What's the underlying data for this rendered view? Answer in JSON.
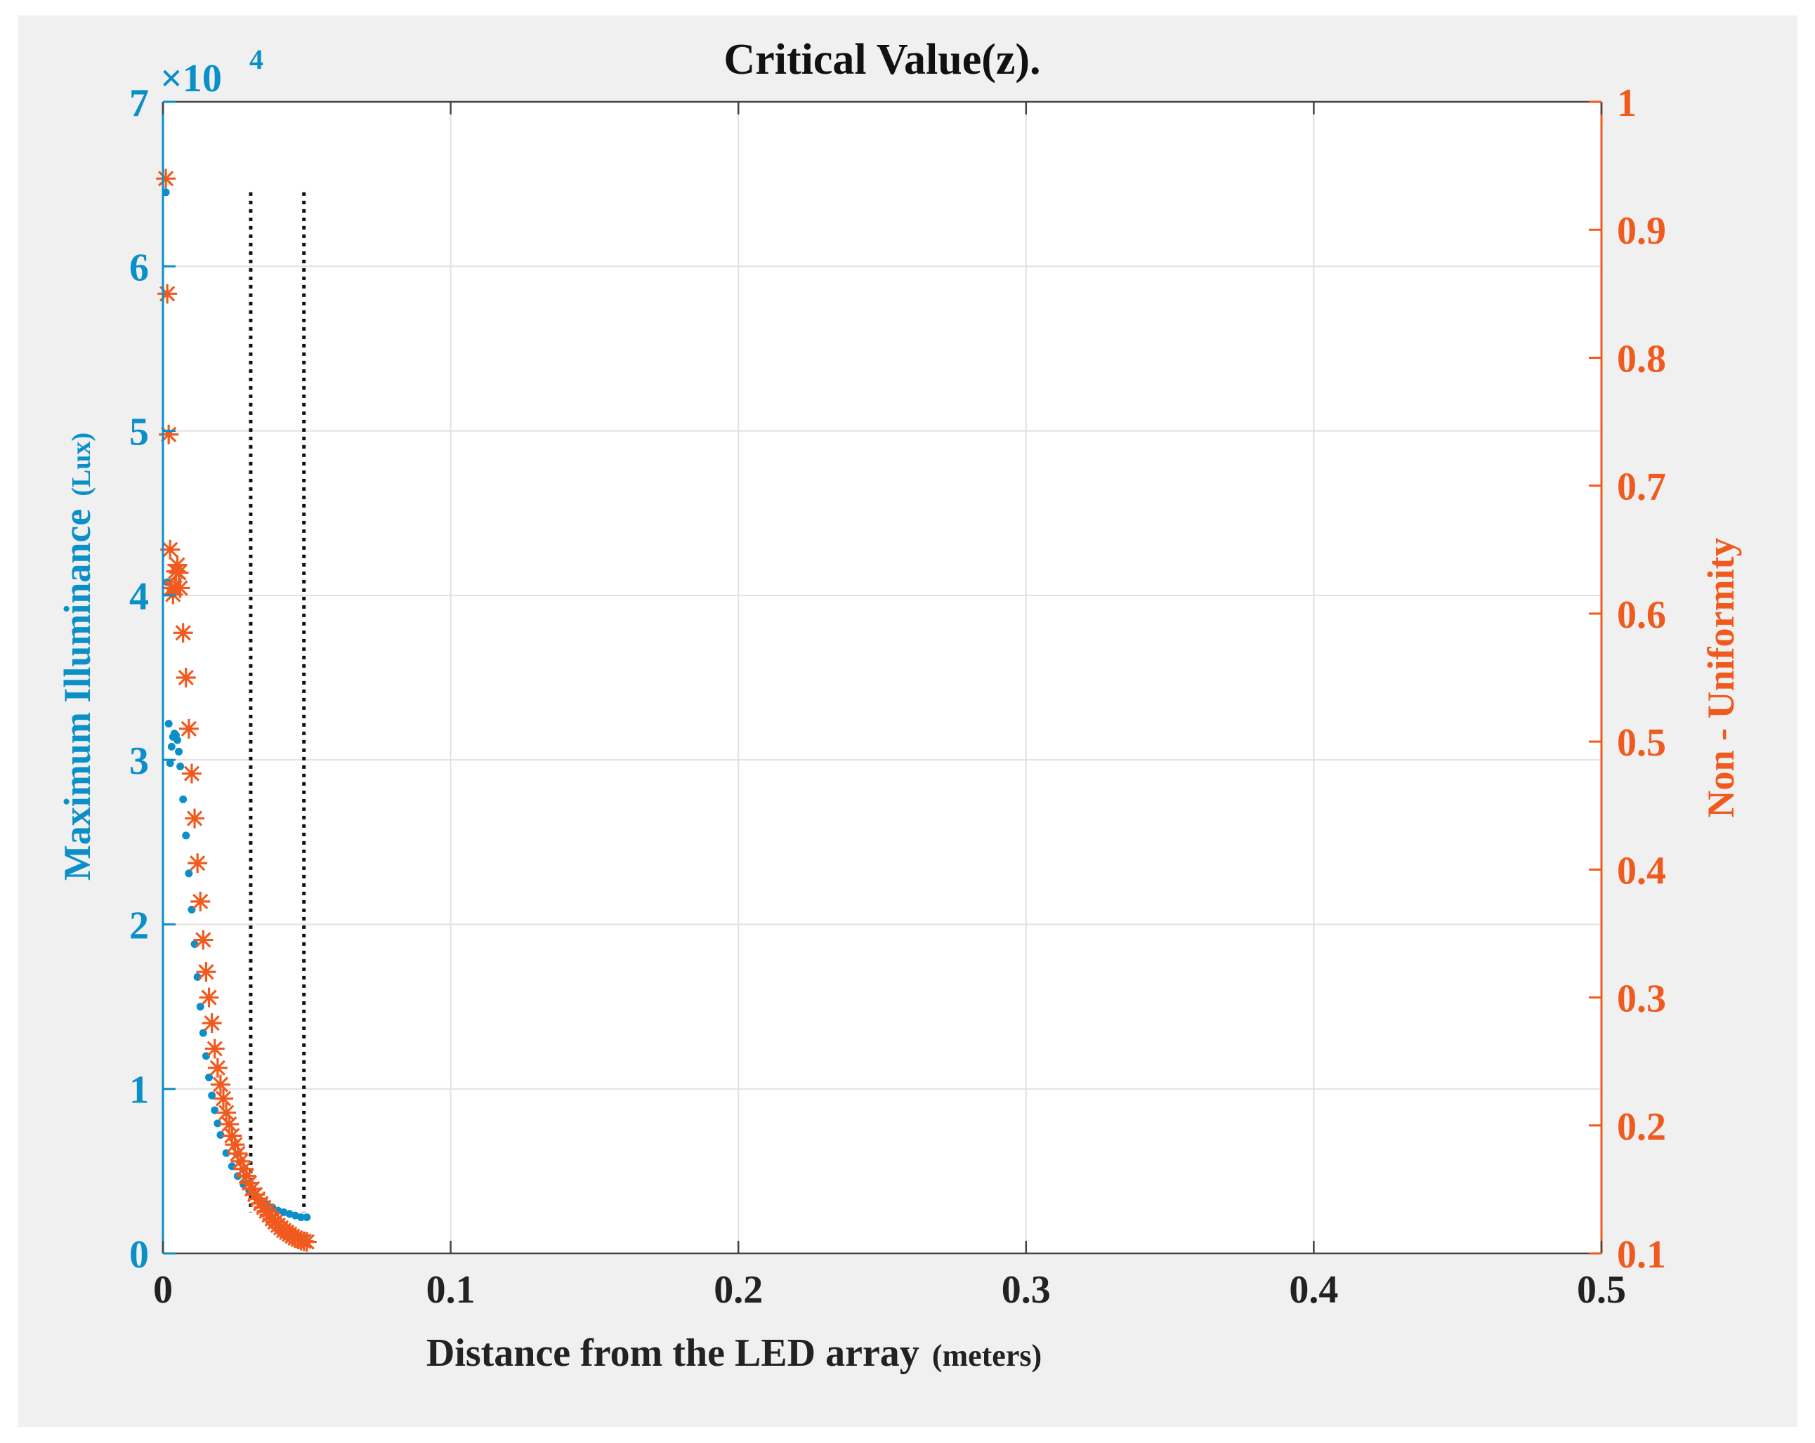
{
  "chart_data": {
    "type": "scatter",
    "title": "Critical Value(z).",
    "xlabel": "Distance from the LED array",
    "xlabel_unit": "(meters)",
    "ylabel_left": "Maximum Illuminance",
    "ylabel_left_unit": "(Lux)",
    "ylabel_right": "Non - Uniformity",
    "left_exponent": "×10",
    "left_exponent_power": "4",
    "xlim": [
      0,
      0.5
    ],
    "ylim_left": [
      0,
      7
    ],
    "ylim_right": [
      0.1,
      1
    ],
    "x_ticks": [
      "0",
      "0.1",
      "0.2",
      "0.3",
      "0.4",
      "0.5"
    ],
    "y_left_ticks": [
      "0",
      "1",
      "2",
      "3",
      "4",
      "5",
      "6",
      "7"
    ],
    "y_right_ticks": [
      "0.1",
      "0.2",
      "0.3",
      "0.4",
      "0.5",
      "0.6",
      "0.7",
      "0.8",
      "0.9",
      "1"
    ],
    "grid": true,
    "vlines": [
      {
        "x": 0.0305,
        "y_range_left": [
          0.25,
          6.45
        ],
        "style": "dotted"
      },
      {
        "x": 0.049,
        "y_range_left": [
          0.25,
          6.45
        ],
        "style": "dotted"
      }
    ],
    "series": [
      {
        "name": "Maximum Illuminance",
        "axis": "left",
        "marker": "dot",
        "color": "#0b8fc9",
        "x": [
          0.001,
          0.0015,
          0.002,
          0.0025,
          0.003,
          0.0035,
          0.004,
          0.0045,
          0.005,
          0.0055,
          0.006,
          0.007,
          0.008,
          0.009,
          0.01,
          0.011,
          0.012,
          0.013,
          0.014,
          0.015,
          0.016,
          0.017,
          0.018,
          0.019,
          0.02,
          0.022,
          0.024,
          0.026,
          0.028,
          0.03,
          0.032,
          0.034,
          0.036,
          0.038,
          0.04,
          0.042,
          0.044,
          0.046,
          0.048,
          0.05
        ],
        "values": [
          6.45,
          4.08,
          3.22,
          2.98,
          3.08,
          3.14,
          3.16,
          3.15,
          3.12,
          3.05,
          2.96,
          2.76,
          2.54,
          2.31,
          2.09,
          1.88,
          1.68,
          1.5,
          1.34,
          1.2,
          1.07,
          0.96,
          0.87,
          0.79,
          0.72,
          0.61,
          0.53,
          0.47,
          0.42,
          0.38,
          0.35,
          0.32,
          0.3,
          0.28,
          0.26,
          0.25,
          0.24,
          0.23,
          0.22,
          0.22
        ]
      },
      {
        "name": "Non - Uniformity",
        "axis": "right",
        "marker": "asterisk",
        "color": "#f05a1e",
        "x": [
          0.001,
          0.0015,
          0.002,
          0.0025,
          0.003,
          0.0035,
          0.004,
          0.0045,
          0.005,
          0.0055,
          0.006,
          0.007,
          0.008,
          0.009,
          0.01,
          0.011,
          0.012,
          0.013,
          0.014,
          0.015,
          0.016,
          0.017,
          0.018,
          0.019,
          0.02,
          0.022,
          0.024,
          0.026,
          0.028,
          0.03,
          0.032,
          0.034,
          0.036,
          0.038,
          0.04,
          0.042,
          0.044,
          0.046,
          0.048,
          0.05
        ],
        "values": [
          0.94,
          0.85,
          0.74,
          0.65,
          0.62,
          0.615,
          0.62,
          0.633,
          0.638,
          0.632,
          0.62,
          0.585,
          0.55,
          0.51,
          0.475,
          0.44,
          0.405,
          0.375,
          0.345,
          0.32,
          0.3,
          0.28,
          0.26,
          0.245,
          0.232,
          0.21,
          0.192,
          0.178,
          0.166,
          0.155,
          0.146,
          0.139,
          0.133,
          0.127,
          0.122,
          0.118,
          0.115,
          0.112,
          0.11,
          0.109
        ]
      }
    ]
  },
  "colors": {
    "left_axis": "#0b8fc9",
    "right_axis": "#f05a1e",
    "frame_background": "#f0f0f0",
    "plot_background": "#ffffff",
    "grid": "#e1e1e1"
  }
}
